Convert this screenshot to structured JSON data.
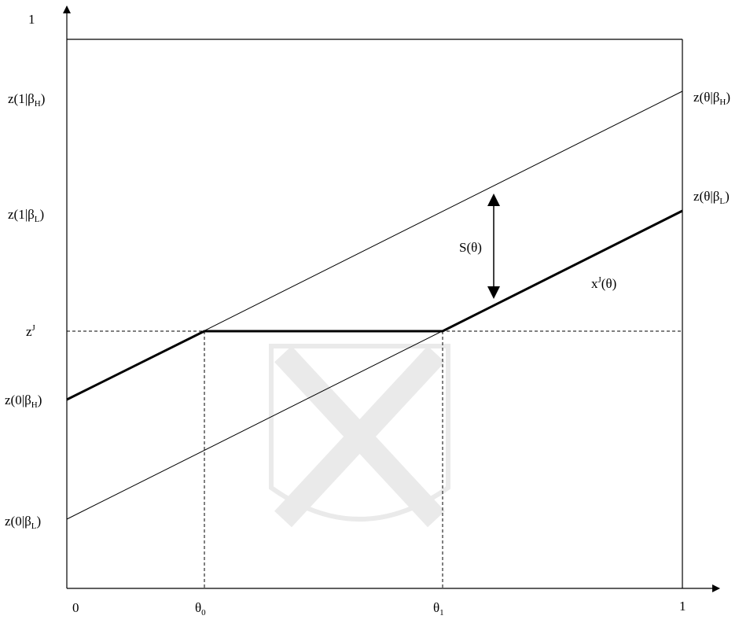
{
  "axes": {
    "y_top": "1",
    "x_origin": "0",
    "x_end": "1"
  },
  "left_labels": [
    {
      "pre": "z(1|β",
      "sub": "H",
      "post": ")"
    },
    {
      "pre": "z(1|β",
      "sub": "L",
      "post": ")"
    },
    {
      "pre": "z",
      "sup": "J"
    },
    {
      "pre": "z(0|β",
      "sub": "H",
      "post": ")"
    },
    {
      "pre": "z(0|β",
      "sub": "L",
      "post": ")"
    }
  ],
  "right_labels": [
    {
      "pre": "z(θ|β",
      "sub": "H",
      "post": ")"
    },
    {
      "pre": "z(θ|β",
      "sub": "L",
      "post": ")"
    }
  ],
  "annotations": [
    {
      "pre": "S(θ)"
    },
    {
      "pre": "x",
      "sup": "J",
      "post": "(θ)"
    }
  ],
  "bottom_labels": [
    {
      "pre": "θ",
      "sub": "0"
    },
    {
      "pre": "θ",
      "sub": "1"
    }
  ]
}
